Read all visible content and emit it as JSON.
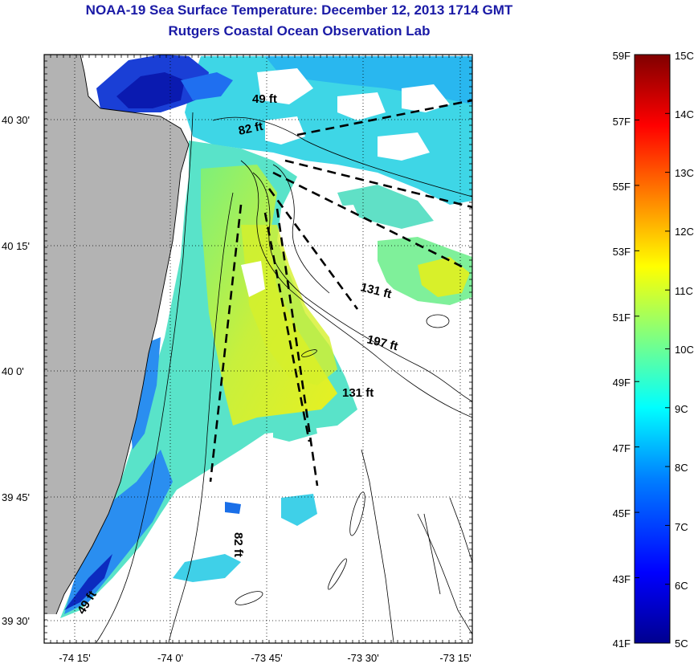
{
  "titles": {
    "line1": "NOAA-19 Sea Surface Temperature:  December 12, 2013 1714 GMT",
    "line2": "Rutgers Coastal Ocean Observation Lab"
  },
  "map": {
    "lat_labels": [
      "40 30'",
      "40 15'",
      "40 0'",
      "39 45'",
      "39 30'"
    ],
    "lon_labels": [
      "-74 15'",
      "-74 0'",
      "-73 45'",
      "-73 30'",
      "-73 15'"
    ],
    "depth_labels": [
      "49 ft",
      "82 ft",
      "131 ft",
      "197 ft",
      "131 ft",
      "82 ft",
      "49 ft"
    ],
    "colors": {
      "land": "#b3b3b3",
      "grid": "#000000"
    }
  },
  "colorbar": {
    "f_labels": [
      "59F",
      "57F",
      "55F",
      "53F",
      "51F",
      "49F",
      "47F",
      "45F",
      "43F",
      "41F"
    ],
    "c_labels": [
      "15C",
      "14C",
      "13C",
      "12C",
      "11C",
      "10C",
      "9C",
      "8C",
      "7C",
      "6C",
      "5C"
    ],
    "colormap": [
      "#00008f",
      "#0000ff",
      "#0080ff",
      "#00ffff",
      "#80ff80",
      "#ffff00",
      "#ff8000",
      "#ff0000",
      "#800000"
    ]
  }
}
